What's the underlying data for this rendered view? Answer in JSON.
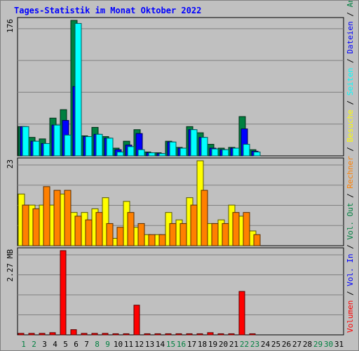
{
  "chart_data": {
    "type": "bar",
    "title": "Tages-Statistik im Monat Oktober 2022",
    "categories": [
      "1",
      "2",
      "3",
      "4",
      "5",
      "6",
      "7",
      "8",
      "9",
      "10",
      "11",
      "12",
      "13",
      "14",
      "15",
      "16",
      "17",
      "18",
      "19",
      "20",
      "21",
      "22",
      "23",
      "24",
      "25",
      "26",
      "27",
      "28",
      "29",
      "30",
      "31"
    ],
    "weekend_days": [
      "1",
      "2",
      "8",
      "9",
      "15",
      "16",
      "22",
      "23",
      "29",
      "30"
    ],
    "panels": [
      {
        "id": "requests",
        "axis_max_label": "176",
        "ylim": [
          0,
          176
        ],
        "series": [
          {
            "name": "Anfragen",
            "color": "#008040",
            "values": [
              38,
              24,
              22,
              49,
              60,
              176,
              26,
              37,
              25,
              10,
              19,
              34,
              5,
              4,
              19,
              11,
              38,
              30,
              15,
              10,
              11,
              51,
              8,
              0,
              0,
              0,
              0,
              0,
              0,
              0,
              0
            ]
          },
          {
            "name": "Dateien",
            "color": "#0000ff",
            "values": [
              38,
              19,
              16,
              40,
              46,
              90,
              25,
              28,
              23,
              8,
              14,
              29,
              4,
              3,
              18,
              10,
              34,
              24,
              10,
              8,
              10,
              35,
              6,
              0,
              0,
              0,
              0,
              0,
              0,
              0,
              0
            ]
          },
          {
            "name": "Seiten",
            "color": "#00ffff",
            "values": [
              38,
              19,
              16,
              40,
              27,
              172,
              25,
              28,
              23,
              5,
              12,
              8,
              4,
              3,
              18,
              10,
              34,
              24,
              9,
              8,
              10,
              15,
              5,
              0,
              0,
              0,
              0,
              0,
              0,
              0,
              0
            ]
          }
        ]
      },
      {
        "id": "visits",
        "axis_max_label": "23",
        "ylim": [
          0,
          23
        ],
        "series": [
          {
            "name": "Besuche",
            "color": "#ffff00",
            "values": [
              14,
              11,
              11,
              11,
              14,
              9,
              9,
              10,
              13,
              2,
              12,
              5,
              3,
              3,
              9,
              7,
              13,
              23,
              6,
              7,
              11,
              8,
              4,
              0,
              0,
              0,
              0,
              0,
              0,
              0,
              0
            ]
          },
          {
            "name": "Rechner",
            "color": "#ff8000",
            "values": [
              11,
              10,
              16,
              15,
              15,
              8,
              7,
              9,
              6,
              5,
              9,
              6,
              3,
              3,
              6,
              6,
              11,
              15,
              6,
              6,
              9,
              9,
              3,
              0,
              0,
              0,
              0,
              0,
              0,
              0,
              0
            ]
          }
        ]
      },
      {
        "id": "volume",
        "axis_max_label": "2.27 MB",
        "ylim": [
          0,
          2.27
        ],
        "series": [
          {
            "name": "Volumen",
            "color": "#ff0000",
            "values": [
              0.04,
              0.04,
              0.04,
              0.06,
              2.27,
              0.14,
              0.04,
              0.04,
              0.04,
              0.03,
              0.03,
              0.8,
              0.03,
              0.03,
              0.03,
              0.03,
              0.03,
              0.03,
              0.06,
              0.03,
              0.03,
              1.17,
              0.03,
              0,
              0,
              0,
              0,
              0,
              0,
              0,
              0
            ]
          }
        ]
      }
    ],
    "right_legend": [
      {
        "label": "Anfragen",
        "color": "#008040"
      },
      {
        "label": "Dateien",
        "color": "#0000ff"
      },
      {
        "label": "Seiten",
        "color": "#00ffff"
      },
      {
        "label": "Besuche",
        "color": "#ffff00"
      },
      {
        "label": "Rechner",
        "color": "#ff8000"
      },
      {
        "label": "Vol. Out",
        "color": "#008040"
      },
      {
        "label": "Vol. In",
        "color": "#0000ff"
      },
      {
        "label": "Volumen",
        "color": "#ff0000"
      }
    ],
    "colors": {
      "background": "#c0c0c0",
      "title": "#0000ff",
      "weekday_label": "#000000",
      "weekend_label": "#008040"
    },
    "grid": true
  }
}
